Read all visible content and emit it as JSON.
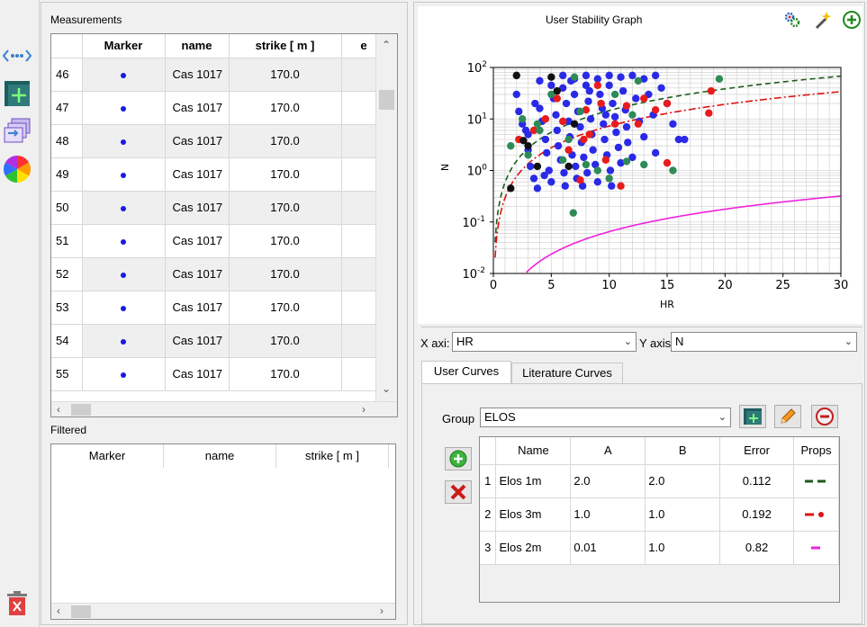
{
  "measurements": {
    "title": "Measurements",
    "columns": [
      "Marker",
      "name",
      "strike [ m ]",
      "e"
    ],
    "rows": [
      {
        "index": "46",
        "name": "Cas 1017",
        "strike": "170.0"
      },
      {
        "index": "47",
        "name": "Cas 1017",
        "strike": "170.0"
      },
      {
        "index": "48",
        "name": "Cas 1017",
        "strike": "170.0"
      },
      {
        "index": "49",
        "name": "Cas 1017",
        "strike": "170.0"
      },
      {
        "index": "50",
        "name": "Cas 1017",
        "strike": "170.0"
      },
      {
        "index": "51",
        "name": "Cas 1017",
        "strike": "170.0"
      },
      {
        "index": "52",
        "name": "Cas 1017",
        "strike": "170.0"
      },
      {
        "index": "53",
        "name": "Cas 1017",
        "strike": "170.0"
      },
      {
        "index": "54",
        "name": "Cas 1017",
        "strike": "170.0"
      },
      {
        "index": "55",
        "name": "Cas 1017",
        "strike": "170.0"
      }
    ]
  },
  "filtered": {
    "title": "Filtered",
    "columns": [
      "Marker",
      "name",
      "strike [ m ]"
    ]
  },
  "graph": {
    "title": "User Stability Graph"
  },
  "axes_controls": {
    "x_label": "X axi:",
    "x_value": "HR",
    "y_label": "Y axis",
    "y_value": "N"
  },
  "tabs": {
    "user_curves": "User Curves",
    "literature_curves": "Literature Curves"
  },
  "group": {
    "label": "Group",
    "value": "ELOS"
  },
  "curves_table": {
    "columns": [
      "Name",
      "A",
      "B",
      "Error",
      "Props"
    ],
    "rows": [
      {
        "index": "1",
        "name": "Elos 1m",
        "a": "2.0",
        "b": "2.0",
        "error": "0.112"
      },
      {
        "index": "2",
        "name": "Elos 3m",
        "a": "1.0",
        "b": "1.0",
        "error": "0.192"
      },
      {
        "index": "3",
        "name": "Elos 2m",
        "a": "0.01",
        "b": "1.0",
        "error": "0.82"
      }
    ]
  },
  "chart_data": {
    "type": "scatter",
    "title": "User Stability Graph",
    "xlabel": "HR",
    "ylabel": "N",
    "xlim": [
      0,
      30
    ],
    "ylim": [
      0.01,
      100
    ],
    "yscale": "log",
    "x_ticks": [
      "0",
      "5",
      "10",
      "15",
      "20",
      "25",
      "30"
    ],
    "y_ticks": [
      "10^-2",
      "10^-1",
      "10^0",
      "10^1",
      "10^2"
    ],
    "grid": true,
    "colors": {
      "blue": "#2a2ae6",
      "red": "#e81c1c",
      "green": "#2e8b57",
      "black": "#111111"
    },
    "series": [
      {
        "color": "blue",
        "points": [
          [
            2.0,
            30
          ],
          [
            2.2,
            14
          ],
          [
            2.5,
            8
          ],
          [
            3.0,
            5
          ],
          [
            3.0,
            2.5
          ],
          [
            3.2,
            1.2
          ],
          [
            3.5,
            0.7
          ],
          [
            3.8,
            0.45
          ],
          [
            4.0,
            16
          ],
          [
            4.2,
            9
          ],
          [
            4.5,
            4
          ],
          [
            4.6,
            2.2
          ],
          [
            4.8,
            1.0
          ],
          [
            5.0,
            0.6
          ],
          [
            5.2,
            25
          ],
          [
            5.4,
            12
          ],
          [
            5.5,
            6
          ],
          [
            5.6,
            3
          ],
          [
            5.8,
            1.6
          ],
          [
            6.0,
            70
          ],
          [
            6.0,
            40
          ],
          [
            6.1,
            0.9
          ],
          [
            6.2,
            0.5
          ],
          [
            6.3,
            20
          ],
          [
            6.5,
            9
          ],
          [
            6.6,
            4.5
          ],
          [
            6.8,
            2
          ],
          [
            7.0,
            60
          ],
          [
            7.0,
            30
          ],
          [
            7.1,
            1.2
          ],
          [
            7.2,
            0.7
          ],
          [
            7.3,
            14
          ],
          [
            7.5,
            7
          ],
          [
            7.6,
            3.5
          ],
          [
            7.8,
            1.8
          ],
          [
            8.0,
            70
          ],
          [
            8.0,
            45
          ],
          [
            8.1,
            0.9
          ],
          [
            8.2,
            22
          ],
          [
            8.4,
            10
          ],
          [
            8.5,
            5
          ],
          [
            8.6,
            2.5
          ],
          [
            8.8,
            1.3
          ],
          [
            9.0,
            60
          ],
          [
            9.0,
            0.6
          ],
          [
            9.2,
            30
          ],
          [
            9.4,
            16
          ],
          [
            9.5,
            8
          ],
          [
            9.6,
            4
          ],
          [
            9.8,
            2
          ],
          [
            10.0,
            70
          ],
          [
            10.0,
            45
          ],
          [
            10.1,
            1.0
          ],
          [
            10.2,
            0.5
          ],
          [
            10.3,
            20
          ],
          [
            10.5,
            11
          ],
          [
            10.6,
            5.5
          ],
          [
            10.8,
            2.8
          ],
          [
            11.0,
            65
          ],
          [
            11.0,
            1.4
          ],
          [
            11.2,
            35
          ],
          [
            11.4,
            15
          ],
          [
            11.5,
            7
          ],
          [
            11.6,
            3.5
          ],
          [
            12.0,
            70
          ],
          [
            12.0,
            1.8
          ],
          [
            12.3,
            25
          ],
          [
            12.6,
            9
          ],
          [
            13.0,
            60
          ],
          [
            13.0,
            4.5
          ],
          [
            13.4,
            30
          ],
          [
            13.8,
            12
          ],
          [
            14.0,
            70
          ],
          [
            14.0,
            2.2
          ],
          [
            14.5,
            40
          ],
          [
            15.0,
            20
          ],
          [
            15.5,
            8
          ],
          [
            16.0,
            4
          ],
          [
            16.5,
            4
          ],
          [
            4.0,
            55
          ],
          [
            5.0,
            45
          ],
          [
            6.7,
            55
          ],
          [
            8.3,
            35
          ],
          [
            9.7,
            12
          ],
          [
            3.6,
            20
          ],
          [
            2.8,
            6
          ],
          [
            7.7,
            0.5
          ],
          [
            4.4,
            0.8
          ]
        ]
      },
      {
        "color": "red",
        "points": [
          [
            2.2,
            4
          ],
          [
            3.5,
            6
          ],
          [
            4.5,
            10
          ],
          [
            5.5,
            25
          ],
          [
            6.0,
            9
          ],
          [
            6.5,
            2.5
          ],
          [
            7.5,
            0.65
          ],
          [
            7.8,
            4
          ],
          [
            8.0,
            15
          ],
          [
            8.3,
            5
          ],
          [
            9.0,
            45
          ],
          [
            9.3,
            20
          ],
          [
            10.5,
            8
          ],
          [
            11.0,
            0.5
          ],
          [
            11.5,
            18
          ],
          [
            12.5,
            8
          ],
          [
            13.0,
            25
          ],
          [
            14.0,
            15
          ],
          [
            15.0,
            20
          ],
          [
            15.0,
            1.4
          ],
          [
            18.6,
            13
          ],
          [
            18.8,
            35
          ],
          [
            9.7,
            1.6
          ]
        ]
      },
      {
        "color": "green",
        "points": [
          [
            1.5,
            3
          ],
          [
            2.5,
            10
          ],
          [
            3.0,
            2
          ],
          [
            4.0,
            6
          ],
          [
            5.0,
            30
          ],
          [
            6.0,
            1.6
          ],
          [
            6.5,
            4
          ],
          [
            7.0,
            65
          ],
          [
            7.5,
            14
          ],
          [
            8.0,
            1.3
          ],
          [
            9.0,
            1.0
          ],
          [
            10.0,
            0.7
          ],
          [
            10.5,
            30
          ],
          [
            11.5,
            1.5
          ],
          [
            12.0,
            12
          ],
          [
            12.5,
            55
          ],
          [
            13.0,
            1.3
          ],
          [
            15.5,
            1.0
          ],
          [
            19.5,
            60
          ],
          [
            6.9,
            0.15
          ],
          [
            3.8,
            8
          ]
        ]
      },
      {
        "color": "black",
        "points": [
          [
            1.5,
            0.45
          ],
          [
            2.0,
            70
          ],
          [
            3.0,
            3
          ],
          [
            3.8,
            1.2
          ],
          [
            5.0,
            65
          ],
          [
            5.5,
            35
          ],
          [
            6.5,
            1.2
          ],
          [
            7.0,
            8
          ],
          [
            2.6,
            3.8
          ]
        ]
      }
    ],
    "curves": [
      {
        "name": "Elos 1m",
        "color": "#1a5c1a",
        "style": "dashed"
      },
      {
        "name": "Elos 3m",
        "color": "#dd1111",
        "style": "dashdot"
      },
      {
        "name": "Elos 2m",
        "color": "#ee22dd",
        "style": "solid"
      }
    ]
  }
}
